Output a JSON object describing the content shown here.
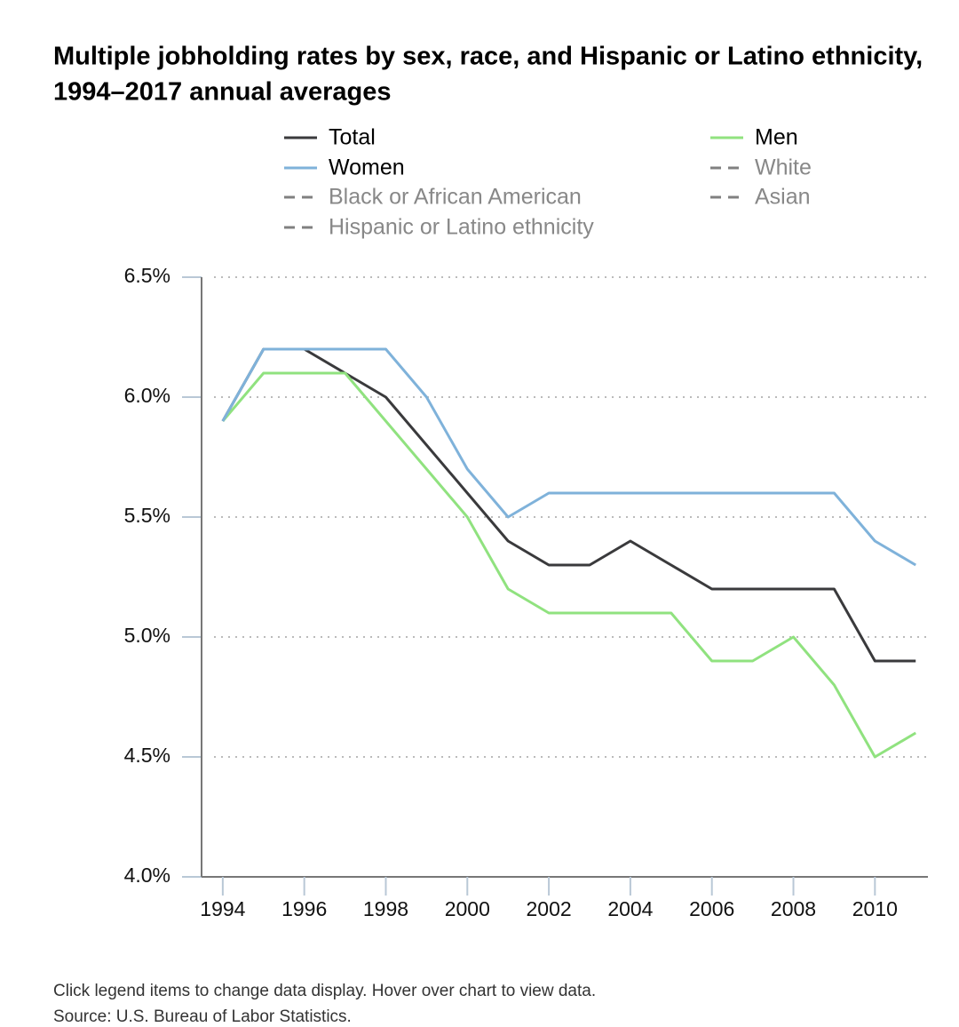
{
  "chart_data": {
    "type": "line",
    "title": "Multiple jobholding rates by sex, race, and Hispanic or Latino ethnicity,",
    "subtitle": "1994–2017 annual averages",
    "x": [
      1994,
      1995,
      1996,
      1997,
      1998,
      1999,
      2000,
      2001,
      2002,
      2003,
      2004,
      2005,
      2006,
      2007,
      2008,
      2009,
      2010,
      2011
    ],
    "series": [
      {
        "name": "Total",
        "color": "#3a3a3c",
        "values": [
          5.9,
          6.2,
          6.2,
          6.1,
          6.0,
          5.8,
          5.6,
          5.4,
          5.3,
          5.3,
          5.4,
          5.3,
          5.2,
          5.2,
          5.2,
          5.2,
          4.9,
          4.9
        ]
      },
      {
        "name": "Men",
        "color": "#90e27f",
        "values": [
          5.9,
          6.1,
          6.1,
          6.1,
          5.9,
          5.7,
          5.5,
          5.2,
          5.1,
          5.1,
          5.1,
          5.1,
          4.9,
          4.9,
          5.0,
          4.8,
          4.5,
          4.6
        ]
      },
      {
        "name": "Women",
        "color": "#7fb2da",
        "values": [
          5.9,
          6.2,
          6.2,
          6.2,
          6.2,
          6.0,
          5.7,
          5.5,
          5.6,
          5.6,
          5.6,
          5.6,
          5.6,
          5.6,
          5.6,
          5.6,
          5.4,
          5.3
        ]
      },
      {
        "name": "White",
        "color": "#808080",
        "dashed": true,
        "visible": false
      },
      {
        "name": "Black or African American",
        "color": "#808080",
        "dashed": true,
        "visible": false
      },
      {
        "name": "Asian",
        "color": "#808080",
        "dashed": true,
        "visible": false
      },
      {
        "name": "Hispanic or Latino ethnicity",
        "color": "#808080",
        "dashed": true,
        "visible": false
      }
    ],
    "xlim": [
      1993.48,
      2011.3
    ],
    "xticks": [
      1994,
      1996,
      1998,
      2000,
      2002,
      2004,
      2006,
      2008,
      2010
    ],
    "ylim": [
      4.0,
      6.5
    ],
    "yticks": [
      {
        "value": 4.0,
        "label": "4.0%"
      },
      {
        "value": 4.5,
        "label": "4.5%"
      },
      {
        "value": 5.0,
        "label": "5.0%"
      },
      {
        "value": 5.5,
        "label": "5.5%"
      },
      {
        "value": 6.0,
        "label": "6.0%"
      },
      {
        "value": 6.5,
        "label": "6.5%"
      }
    ],
    "grid": true,
    "notes": [
      "Click legend items to change data display. Hover over chart to view data.",
      "Source: U.S. Bureau of Labor Statistics."
    ]
  }
}
